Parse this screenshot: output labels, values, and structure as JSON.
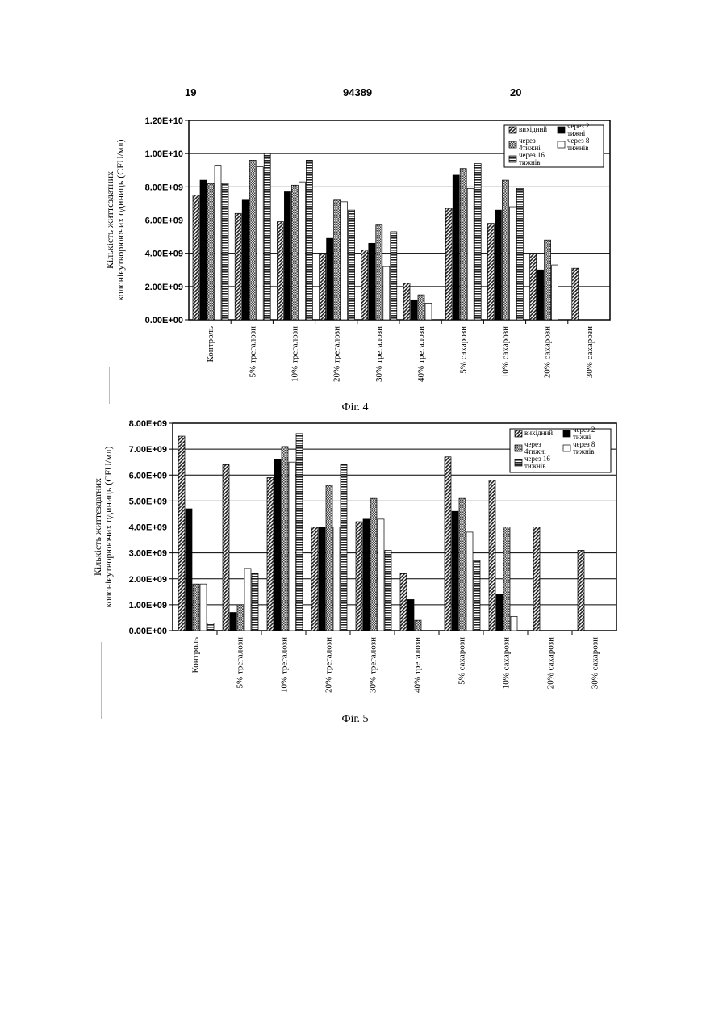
{
  "header": {
    "page_left": "19",
    "patent_number": "94389",
    "page_right": "20"
  },
  "legend_entries": [
    "вихідний",
    "через 2 тижні",
    "через 4тижні",
    "через 8 тижнів",
    "через 16 тижнів"
  ],
  "chart_data": [
    {
      "type": "bar",
      "caption": "Фіг. 4",
      "ylabel": [
        "Кількість життєздатних",
        "колонієутворюючих одиниць (CFU/мл)"
      ],
      "ylim": [
        0,
        12000000000
      ],
      "yticks": [
        "0.00E+00",
        "2.00E+09",
        "4.00E+09",
        "6.00E+09",
        "8.00E+09",
        "1.00E+10",
        "1.20E+10"
      ],
      "grid": true,
      "legend_position": "top-right",
      "categories": [
        "Контроль",
        "5% трегалози",
        "10% трегалози",
        "20% трегалози",
        "30% трегалози",
        "40% трегалози",
        "5% сахарози",
        "10% сахарози",
        "20% сахарози",
        "30% сахарози"
      ],
      "series": [
        {
          "name": "вихідний",
          "values": [
            7500000000,
            6400000000,
            5900000000,
            4000000000,
            4200000000,
            2200000000,
            6700000000,
            5800000000,
            4000000000,
            3100000000
          ]
        },
        {
          "name": "через 2 тижні",
          "values": [
            8400000000,
            7200000000,
            7700000000,
            4900000000,
            4600000000,
            1200000000,
            8700000000,
            6600000000,
            3000000000,
            0
          ]
        },
        {
          "name": "через 4тижні",
          "values": [
            8200000000,
            9600000000,
            8100000000,
            7200000000,
            5700000000,
            1500000000,
            9100000000,
            8400000000,
            4800000000,
            0
          ]
        },
        {
          "name": "через 8 тижнів",
          "values": [
            9300000000,
            9200000000,
            8300000000,
            7100000000,
            3200000000,
            1000000000,
            7900000000,
            6800000000,
            3300000000,
            0
          ]
        },
        {
          "name": "через 16 тижнів",
          "values": [
            8200000000,
            10000000000,
            9600000000,
            6600000000,
            5300000000,
            0,
            9400000000,
            7900000000,
            0,
            0
          ]
        }
      ]
    },
    {
      "type": "bar",
      "caption": "Фіг. 5",
      "ylabel": [
        "Кількість життєздатних",
        "колонієутворюючих одиниць (CFU/мл)"
      ],
      "ylim": [
        0,
        8000000000
      ],
      "yticks": [
        "0.00E+00",
        "1.00E+09",
        "2.00E+09",
        "3.00E+09",
        "4.00E+09",
        "5.00E+09",
        "6.00E+09",
        "7.00E+09",
        "8.00E+09"
      ],
      "grid": true,
      "legend_position": "top-right",
      "categories": [
        "Контроль",
        "5% трегалози",
        "10% трегалози",
        "20% трегалози",
        "30% трегалози",
        "40% трегалози",
        "5% сахарози",
        "10% сахарози",
        "20% сахарози",
        "30% сахарози"
      ],
      "series": [
        {
          "name": "вихідний",
          "values": [
            7500000000,
            6400000000,
            5900000000,
            4000000000,
            4200000000,
            2200000000,
            6700000000,
            5800000000,
            4000000000,
            3100000000
          ]
        },
        {
          "name": "через 2 тижні",
          "values": [
            4700000000,
            700000000,
            6600000000,
            4000000000,
            4300000000,
            1200000000,
            4600000000,
            1400000000,
            0,
            0
          ]
        },
        {
          "name": "через 4тижні",
          "values": [
            1800000000,
            1000000000,
            7100000000,
            5600000000,
            5100000000,
            400000000,
            5100000000,
            4000000000,
            0,
            0
          ]
        },
        {
          "name": "через 8 тижнів",
          "values": [
            1800000000,
            2400000000,
            6500000000,
            4000000000,
            4300000000,
            0,
            3800000000,
            550000000,
            0,
            0
          ]
        },
        {
          "name": "через 16 тижнів",
          "values": [
            300000000,
            2200000000,
            7600000000,
            6400000000,
            3100000000,
            0,
            2700000000,
            0,
            0,
            0
          ]
        }
      ]
    }
  ]
}
